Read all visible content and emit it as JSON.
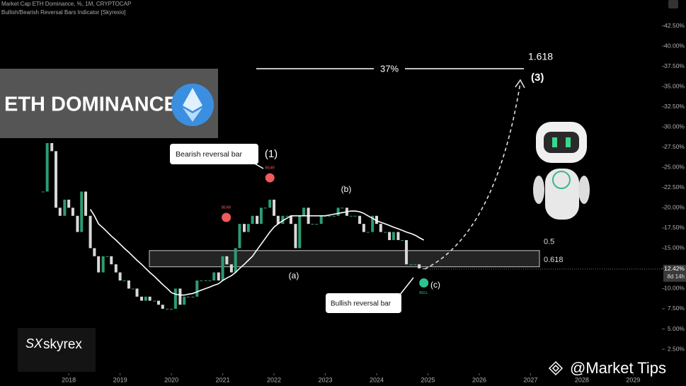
{
  "header": {
    "title": "Market Cap ETH Dominance, %, 1M, CRYPTOCAP",
    "indicator": "Bullish/Bearish Reversal Bars Indicator [Skyrexio]"
  },
  "banner": {
    "title": "ETH DOMINANCE"
  },
  "logo": "skyrex",
  "watermark": "@Market Tips",
  "chart_data": {
    "type": "candlestick",
    "x": [
      2017.5,
      2017.58,
      2017.67,
      2017.75,
      2017.83,
      2017.92,
      2018,
      2018.08,
      2018.17,
      2018.25,
      2018.33,
      2018.42,
      2018.5,
      2018.58,
      2018.67,
      2018.75,
      2018.83,
      2018.92,
      2019,
      2019.08,
      2019.17,
      2019.25,
      2019.33,
      2019.42,
      2019.5,
      2019.58,
      2019.67,
      2019.75,
      2019.83,
      2019.92,
      2020,
      2020.08,
      2020.17,
      2020.25,
      2020.33,
      2020.42,
      2020.5,
      2020.58,
      2020.67,
      2020.75,
      2020.83,
      2020.92,
      2021,
      2021.08,
      2021.17,
      2021.25,
      2021.33,
      2021.42,
      2021.5,
      2021.58,
      2021.67,
      2021.75,
      2021.83,
      2021.92,
      2022,
      2022.08,
      2022.17,
      2022.25,
      2022.33,
      2022.42,
      2022.5,
      2022.58,
      2022.67,
      2022.75,
      2022.83,
      2022.92,
      2023,
      2023.08,
      2023.17,
      2023.25,
      2023.33,
      2023.42,
      2023.5,
      2023.58,
      2023.67,
      2023.75,
      2023.83,
      2023.92,
      2024,
      2024.08,
      2024.17,
      2024.25,
      2024.33,
      2024.42,
      2024.5,
      2024.58,
      2024.67,
      2024.75,
      2024.83,
      2024.92
    ],
    "closes": [
      22,
      28,
      27,
      20,
      19,
      21,
      20,
      19,
      17,
      22,
      19,
      15,
      14,
      12,
      14,
      14,
      13,
      12,
      11,
      11,
      10,
      10,
      9,
      8.5,
      9,
      8.5,
      8.5,
      8,
      7.5,
      7.5,
      7.5,
      10,
      8,
      9,
      9,
      9,
      11,
      11,
      11,
      11,
      12,
      11,
      14,
      13,
      12,
      15,
      18,
      17,
      18,
      19,
      18,
      20,
      20,
      21,
      19,
      18,
      19,
      19,
      18,
      15,
      19,
      20,
      18,
      18,
      18,
      19,
      19,
      19,
      19,
      20,
      20,
      19,
      19,
      19,
      18,
      17,
      17,
      19,
      18,
      17,
      17,
      16,
      17,
      16,
      16,
      13,
      13,
      13,
      12.5,
      12.42
    ],
    "ma": [
      null,
      null,
      null,
      null,
      null,
      null,
      null,
      null,
      null,
      null,
      null,
      19.8,
      19,
      18,
      17.5,
      17,
      16.5,
      16,
      15.5,
      15,
      14.5,
      14,
      13.5,
      13,
      12.5,
      12,
      11.5,
      11,
      10.5,
      10,
      9.5,
      9.3,
      9.2,
      9.2,
      9.3,
      9.4,
      9.6,
      9.8,
      10,
      10.2,
      10.4,
      10.6,
      11,
      11.3,
      11.6,
      12,
      12.5,
      13,
      13.5,
      14,
      14.8,
      15.5,
      16.2,
      17,
      17.6,
      18,
      18.4,
      18.7,
      19,
      19,
      19,
      19,
      19,
      19,
      19,
      19,
      19,
      19.1,
      19.2,
      19.3,
      19.4,
      19.5,
      19.6,
      19.6,
      19.5,
      19.3,
      19,
      18.7,
      18.4,
      18.2,
      18,
      17.8,
      17.6,
      17.4,
      17.2,
      17,
      16.8,
      16.6,
      16.3,
      16
    ],
    "up_color": "#2e9c72",
    "down_color": "#d9d9d9",
    "ma_color": "#ffffff",
    "xlim": [
      2016.66,
      2029.56
    ],
    "xticks": [
      2018,
      2019,
      2020,
      2021,
      2022,
      2023,
      2024,
      2025,
      2026,
      2027,
      2028,
      2029
    ],
    "ylim": [
      -0.3,
      45.7
    ],
    "yticks": [
      {
        "value": 2.5,
        "label": "2.50%"
      },
      {
        "value": 5,
        "label": "5.00%"
      },
      {
        "value": 7.5,
        "label": "7.50%"
      },
      {
        "value": 10,
        "label": "10.00%"
      },
      {
        "value": 12.5,
        "label": "12.50%"
      },
      {
        "value": 15,
        "label": "15.00%"
      },
      {
        "value": 17.5,
        "label": "17.50%"
      },
      {
        "value": 20,
        "label": "20.00%"
      },
      {
        "value": 22.5,
        "label": "22.50%"
      },
      {
        "value": 25,
        "label": "25.00%"
      },
      {
        "value": 27.5,
        "label": "27.50%"
      },
      {
        "value": 30,
        "label": "30.00%"
      },
      {
        "value": 32.5,
        "label": "32.50%"
      },
      {
        "value": 35,
        "label": "35.00%"
      },
      {
        "value": 37.5,
        "label": "37.50%"
      },
      {
        "value": 40,
        "label": "40.00%"
      },
      {
        "value": 42.5,
        "label": "42.50%"
      }
    ],
    "last_price": {
      "value": 12.42,
      "label": "12.42%"
    },
    "countdown": "8d 14h",
    "fib_zone": [
      {
        "value": 14.7,
        "label": "0.5"
      },
      {
        "value": 12.7,
        "label": "0.618"
      }
    ],
    "target": {
      "value": 37.2,
      "x": 2026.8,
      "label": "1.618",
      "wave": "(3)",
      "move": "37%"
    },
    "reversal_bars": [
      {
        "x": 2021.07,
        "value": 18.8,
        "label": "BEAR",
        "color": "#f05a5a"
      },
      {
        "x": 2021.92,
        "value": 23.7,
        "label": "BEAR",
        "color": "#f05a5a"
      },
      {
        "x": 2024.92,
        "value": 10.7,
        "label": "BULL",
        "color": "#2ec492"
      }
    ],
    "annotations": {
      "bearish": "Bearish reversal bar",
      "bullish": "Bullish reversal bar",
      "wave1": "(1)",
      "wave_a": "(a)",
      "wave_b": "(b)",
      "wave_c": "(c)"
    }
  }
}
